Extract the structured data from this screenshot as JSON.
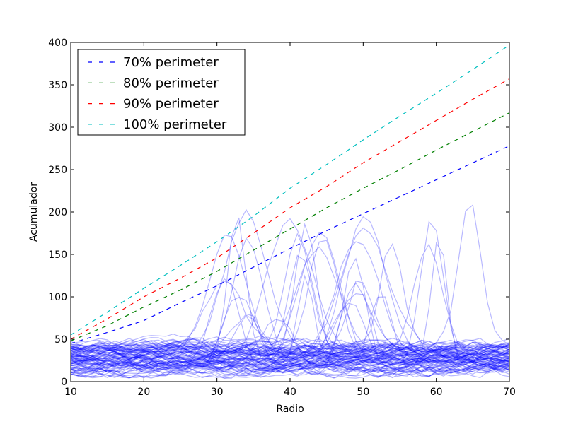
{
  "chart_data": {
    "type": "line",
    "title": "",
    "xlabel": "Radio",
    "ylabel": "Acumulador",
    "xlim": [
      10,
      70
    ],
    "ylim": [
      0,
      400
    ],
    "xticks": [
      "10",
      "20",
      "30",
      "40",
      "50",
      "60",
      "70"
    ],
    "yticks": [
      "0",
      "50",
      "100",
      "150",
      "200",
      "250",
      "300",
      "350",
      "400"
    ],
    "grid": false,
    "legend_position": "top-left",
    "x": [
      10,
      15,
      20,
      25,
      30,
      35,
      40,
      45,
      50,
      55,
      60,
      65,
      70
    ],
    "series": [
      {
        "name": "70% perimeter",
        "color": "#0000ff",
        "style": "dashed",
        "values": [
          45,
          58,
          72,
          93,
          113,
          135,
          157,
          178,
          198,
          218,
          238,
          258,
          278
        ]
      },
      {
        "name": "80% perimeter",
        "color": "#008000",
        "style": "dashed",
        "values": [
          48,
          66,
          88,
          108,
          130,
          155,
          180,
          205,
          228,
          250,
          273,
          295,
          317
        ]
      },
      {
        "name": "90% perimeter",
        "color": "#ff0000",
        "style": "dashed",
        "values": [
          50,
          74,
          100,
          122,
          146,
          175,
          205,
          230,
          258,
          283,
          308,
          333,
          357
        ]
      },
      {
        "name": "100% perimeter",
        "color": "#00bfbf",
        "style": "dashed",
        "values": [
          55,
          82,
          110,
          137,
          165,
          195,
          228,
          256,
          285,
          313,
          340,
          368,
          397
        ]
      }
    ],
    "background_curves": {
      "count": 90,
      "color": "#0000ff",
      "opacity": 0.28,
      "typical_range": [
        10,
        60
      ],
      "peak_max": 230
    }
  }
}
